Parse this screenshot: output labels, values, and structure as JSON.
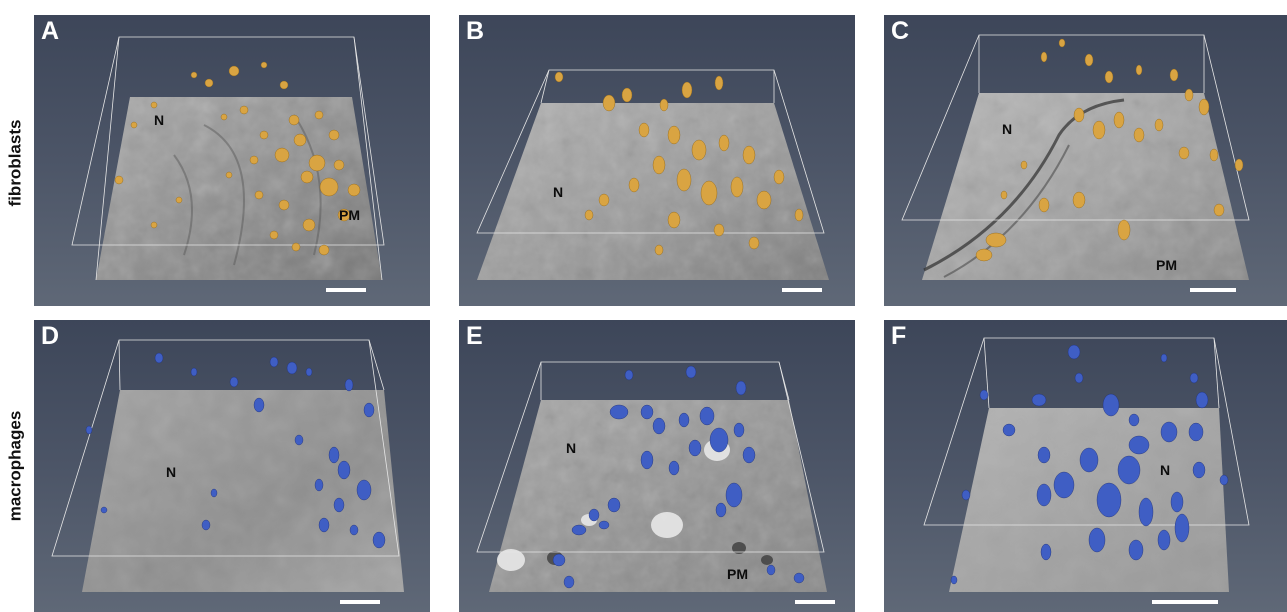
{
  "row_labels": {
    "top": "fibroblasts",
    "bottom": "macrophages"
  },
  "colors": {
    "fibroblast_particles": "#d9a442",
    "macrophage_particles": "#3f5ec4",
    "background": "#4a5366"
  },
  "panels": [
    {
      "letter": "A",
      "cell_type": "fibroblasts",
      "labels": [
        "N",
        "PM"
      ]
    },
    {
      "letter": "B",
      "cell_type": "fibroblasts",
      "labels": [
        "N"
      ]
    },
    {
      "letter": "C",
      "cell_type": "fibroblasts",
      "labels": [
        "N",
        "PM"
      ]
    },
    {
      "letter": "D",
      "cell_type": "macrophages",
      "labels": [
        "N"
      ]
    },
    {
      "letter": "E",
      "cell_type": "macrophages",
      "labels": [
        "N",
        "PM"
      ]
    },
    {
      "letter": "F",
      "cell_type": "macrophages",
      "labels": [
        "N"
      ]
    }
  ]
}
